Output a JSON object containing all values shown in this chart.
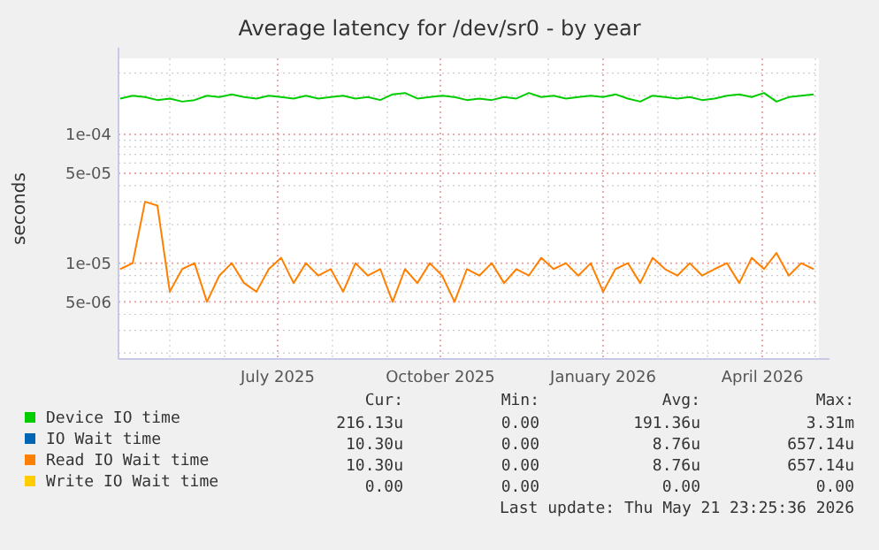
{
  "chart_data": {
    "type": "line",
    "title": "Average latency for /dev/sr0 - by year",
    "ylabel": "seconds",
    "x": [
      "2025-04-03",
      "2025-04-10",
      "2025-04-17",
      "2025-04-24",
      "2025-05-01",
      "2025-05-08",
      "2025-05-15",
      "2025-05-22",
      "2025-05-29",
      "2025-06-05",
      "2025-06-12",
      "2025-06-19",
      "2025-06-26",
      "2025-07-03",
      "2025-07-10",
      "2025-07-17",
      "2025-07-24",
      "2025-07-31",
      "2025-08-07",
      "2025-08-14",
      "2025-08-21",
      "2025-08-28",
      "2025-09-04",
      "2025-09-11",
      "2025-09-18",
      "2025-09-25",
      "2025-10-02",
      "2025-10-09",
      "2025-10-16",
      "2025-10-23",
      "2025-10-30",
      "2025-11-06",
      "2025-11-13",
      "2025-11-20",
      "2025-11-27",
      "2025-12-04",
      "2025-12-11",
      "2025-12-18",
      "2025-12-25",
      "2026-01-01",
      "2026-01-08",
      "2026-01-15",
      "2026-01-22",
      "2026-01-29",
      "2026-02-05",
      "2026-02-12",
      "2026-02-19",
      "2026-02-26",
      "2026-03-05",
      "2026-03-12",
      "2026-03-19",
      "2026-03-26",
      "2026-04-02",
      "2026-04-09",
      "2026-04-16",
      "2026-04-23",
      "2026-04-30"
    ],
    "series": [
      {
        "name": "Device IO time",
        "color": "#00cc00",
        "values": [
          0.00019,
          0.0002,
          0.000195,
          0.000185,
          0.00019,
          0.00018,
          0.000185,
          0.0002,
          0.000195,
          0.000205,
          0.000195,
          0.00019,
          0.0002,
          0.000195,
          0.00019,
          0.0002,
          0.00019,
          0.000195,
          0.0002,
          0.00019,
          0.000195,
          0.000185,
          0.000205,
          0.00021,
          0.00019,
          0.000195,
          0.0002,
          0.000195,
          0.000185,
          0.00019,
          0.000185,
          0.000195,
          0.00019,
          0.00021,
          0.000195,
          0.0002,
          0.00019,
          0.000195,
          0.0002,
          0.000195,
          0.000205,
          0.00019,
          0.00018,
          0.0002,
          0.000195,
          0.00019,
          0.000195,
          0.000185,
          0.00019,
          0.0002,
          0.000205,
          0.000195,
          0.00021,
          0.00018,
          0.000195,
          0.0002,
          0.000205
        ]
      },
      {
        "name": "IO Wait time",
        "color": "#0066b3",
        "values": [
          null,
          null,
          null,
          null,
          null,
          null,
          null,
          null,
          null,
          null,
          null,
          null,
          null,
          null,
          null,
          null,
          null,
          null,
          null,
          null,
          null,
          null,
          null,
          null,
          null,
          null,
          null,
          null,
          null,
          null,
          null,
          null,
          null,
          null,
          null,
          null,
          null,
          null,
          null,
          null,
          null,
          null,
          null,
          null,
          null,
          null,
          null,
          null,
          null,
          null,
          null,
          null,
          null,
          null,
          null,
          null,
          null
        ]
      },
      {
        "name": "Read IO Wait time",
        "color": "#ff8000",
        "values": [
          9e-06,
          1e-05,
          3e-05,
          2.8e-05,
          6e-06,
          9e-06,
          1e-05,
          5e-06,
          8e-06,
          1e-05,
          7e-06,
          6e-06,
          9e-06,
          1.1e-05,
          7e-06,
          1e-05,
          8e-06,
          9e-06,
          6e-06,
          1e-05,
          8e-06,
          9e-06,
          5e-06,
          9e-06,
          7e-06,
          1e-05,
          8e-06,
          5e-06,
          9e-06,
          8e-06,
          1e-05,
          7e-06,
          9e-06,
          8e-06,
          1.1e-05,
          9e-06,
          1e-05,
          8e-06,
          1e-05,
          6e-06,
          9e-06,
          1e-05,
          7e-06,
          1.1e-05,
          9e-06,
          8e-06,
          1e-05,
          8e-06,
          9e-06,
          1e-05,
          7e-06,
          1.1e-05,
          9e-06,
          1.2e-05,
          8e-06,
          1e-05,
          9e-06
        ]
      },
      {
        "name": "Write IO Wait time",
        "color": "#ffcc00",
        "values": [
          null,
          null,
          null,
          null,
          null,
          null,
          null,
          null,
          null,
          null,
          null,
          null,
          null,
          null,
          null,
          null,
          null,
          null,
          null,
          null,
          null,
          null,
          null,
          null,
          null,
          null,
          null,
          null,
          null,
          null,
          null,
          null,
          null,
          null,
          null,
          null,
          null,
          null,
          null,
          null,
          null,
          null,
          null,
          null,
          null,
          null,
          null,
          null,
          null,
          null,
          null,
          null,
          null,
          null,
          null,
          null,
          null
        ]
      }
    ],
    "xlim": [
      "2025-04-02",
      "2026-05-03"
    ],
    "xticks": [
      {
        "value": "2025-07-01",
        "label": "July 2025"
      },
      {
        "value": "2025-10-01",
        "label": "October 2025"
      },
      {
        "value": "2026-01-01",
        "label": "January 2026"
      },
      {
        "value": "2026-04-01",
        "label": "April 2026"
      }
    ],
    "ylim": [
      1.8e-06,
      0.00039
    ],
    "log": true,
    "yticks": [
      {
        "value": 5e-06,
        "label": "5e-06"
      },
      {
        "value": 1e-05,
        "label": "1e-05"
      },
      {
        "value": 5e-05,
        "label": "5e-05"
      },
      {
        "value": 0.0001,
        "label": "1e-04"
      }
    ],
    "grid": true,
    "legend": "bottom",
    "annotations": [
      "Cur:",
      "Min:",
      "Avg:",
      "Max:",
      "216.13u",
      "0.00",
      "191.36u",
      "3.31m",
      "10.30u",
      "0.00",
      "8.76u",
      "657.14u",
      "10.30u",
      "0.00",
      "8.76u",
      "657.14u",
      "0.00",
      "0.00",
      "0.00",
      "0.00",
      "Last update: Thu May 21 23:25:36 2026"
    ]
  }
}
